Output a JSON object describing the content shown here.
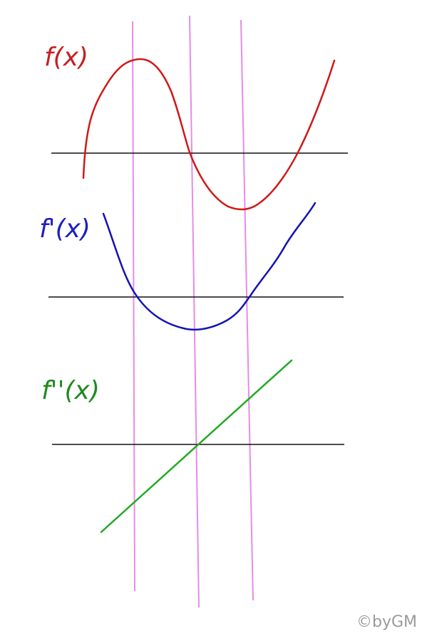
{
  "labels": {
    "f": "f(x)",
    "f_prime": "f'(x)",
    "f_double_prime": "f''(x)"
  },
  "watermark": "©byGM",
  "colors": {
    "f": "#d01818",
    "f_prime": "#1414b4",
    "f_double_prime": "#22aa22",
    "axes": "#111111",
    "guides": "#e58ce8"
  }
}
